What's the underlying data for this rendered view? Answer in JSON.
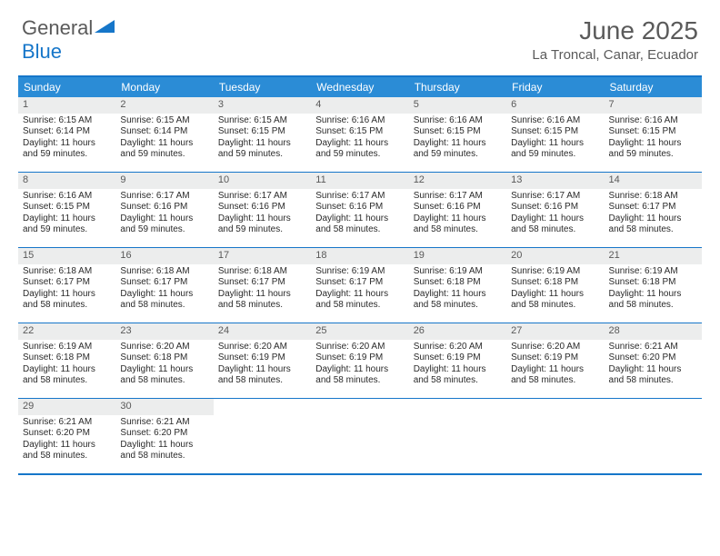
{
  "logo": {
    "text1": "General",
    "text2": "Blue"
  },
  "title": {
    "month": "June 2025",
    "location": "La Troncal, Canar, Ecuador"
  },
  "colors": {
    "header_bg": "#2b8cd6",
    "border": "#1676c9",
    "daynum_bg": "#eceded",
    "text_gray": "#5a5a5a"
  },
  "day_names": [
    "Sunday",
    "Monday",
    "Tuesday",
    "Wednesday",
    "Thursday",
    "Friday",
    "Saturday"
  ],
  "weeks": [
    [
      {
        "n": "1",
        "sunrise": "6:15 AM",
        "sunset": "6:14 PM",
        "daylight": "11 hours and 59 minutes."
      },
      {
        "n": "2",
        "sunrise": "6:15 AM",
        "sunset": "6:14 PM",
        "daylight": "11 hours and 59 minutes."
      },
      {
        "n": "3",
        "sunrise": "6:15 AM",
        "sunset": "6:15 PM",
        "daylight": "11 hours and 59 minutes."
      },
      {
        "n": "4",
        "sunrise": "6:16 AM",
        "sunset": "6:15 PM",
        "daylight": "11 hours and 59 minutes."
      },
      {
        "n": "5",
        "sunrise": "6:16 AM",
        "sunset": "6:15 PM",
        "daylight": "11 hours and 59 minutes."
      },
      {
        "n": "6",
        "sunrise": "6:16 AM",
        "sunset": "6:15 PM",
        "daylight": "11 hours and 59 minutes."
      },
      {
        "n": "7",
        "sunrise": "6:16 AM",
        "sunset": "6:15 PM",
        "daylight": "11 hours and 59 minutes."
      }
    ],
    [
      {
        "n": "8",
        "sunrise": "6:16 AM",
        "sunset": "6:15 PM",
        "daylight": "11 hours and 59 minutes."
      },
      {
        "n": "9",
        "sunrise": "6:17 AM",
        "sunset": "6:16 PM",
        "daylight": "11 hours and 59 minutes."
      },
      {
        "n": "10",
        "sunrise": "6:17 AM",
        "sunset": "6:16 PM",
        "daylight": "11 hours and 59 minutes."
      },
      {
        "n": "11",
        "sunrise": "6:17 AM",
        "sunset": "6:16 PM",
        "daylight": "11 hours and 58 minutes."
      },
      {
        "n": "12",
        "sunrise": "6:17 AM",
        "sunset": "6:16 PM",
        "daylight": "11 hours and 58 minutes."
      },
      {
        "n": "13",
        "sunrise": "6:17 AM",
        "sunset": "6:16 PM",
        "daylight": "11 hours and 58 minutes."
      },
      {
        "n": "14",
        "sunrise": "6:18 AM",
        "sunset": "6:17 PM",
        "daylight": "11 hours and 58 minutes."
      }
    ],
    [
      {
        "n": "15",
        "sunrise": "6:18 AM",
        "sunset": "6:17 PM",
        "daylight": "11 hours and 58 minutes."
      },
      {
        "n": "16",
        "sunrise": "6:18 AM",
        "sunset": "6:17 PM",
        "daylight": "11 hours and 58 minutes."
      },
      {
        "n": "17",
        "sunrise": "6:18 AM",
        "sunset": "6:17 PM",
        "daylight": "11 hours and 58 minutes."
      },
      {
        "n": "18",
        "sunrise": "6:19 AM",
        "sunset": "6:17 PM",
        "daylight": "11 hours and 58 minutes."
      },
      {
        "n": "19",
        "sunrise": "6:19 AM",
        "sunset": "6:18 PM",
        "daylight": "11 hours and 58 minutes."
      },
      {
        "n": "20",
        "sunrise": "6:19 AM",
        "sunset": "6:18 PM",
        "daylight": "11 hours and 58 minutes."
      },
      {
        "n": "21",
        "sunrise": "6:19 AM",
        "sunset": "6:18 PM",
        "daylight": "11 hours and 58 minutes."
      }
    ],
    [
      {
        "n": "22",
        "sunrise": "6:19 AM",
        "sunset": "6:18 PM",
        "daylight": "11 hours and 58 minutes."
      },
      {
        "n": "23",
        "sunrise": "6:20 AM",
        "sunset": "6:18 PM",
        "daylight": "11 hours and 58 minutes."
      },
      {
        "n": "24",
        "sunrise": "6:20 AM",
        "sunset": "6:19 PM",
        "daylight": "11 hours and 58 minutes."
      },
      {
        "n": "25",
        "sunrise": "6:20 AM",
        "sunset": "6:19 PM",
        "daylight": "11 hours and 58 minutes."
      },
      {
        "n": "26",
        "sunrise": "6:20 AM",
        "sunset": "6:19 PM",
        "daylight": "11 hours and 58 minutes."
      },
      {
        "n": "27",
        "sunrise": "6:20 AM",
        "sunset": "6:19 PM",
        "daylight": "11 hours and 58 minutes."
      },
      {
        "n": "28",
        "sunrise": "6:21 AM",
        "sunset": "6:20 PM",
        "daylight": "11 hours and 58 minutes."
      }
    ],
    [
      {
        "n": "29",
        "sunrise": "6:21 AM",
        "sunset": "6:20 PM",
        "daylight": "11 hours and 58 minutes."
      },
      {
        "n": "30",
        "sunrise": "6:21 AM",
        "sunset": "6:20 PM",
        "daylight": "11 hours and 58 minutes."
      },
      null,
      null,
      null,
      null,
      null
    ]
  ],
  "labels": {
    "sunrise": "Sunrise:",
    "sunset": "Sunset:",
    "daylight": "Daylight:"
  }
}
